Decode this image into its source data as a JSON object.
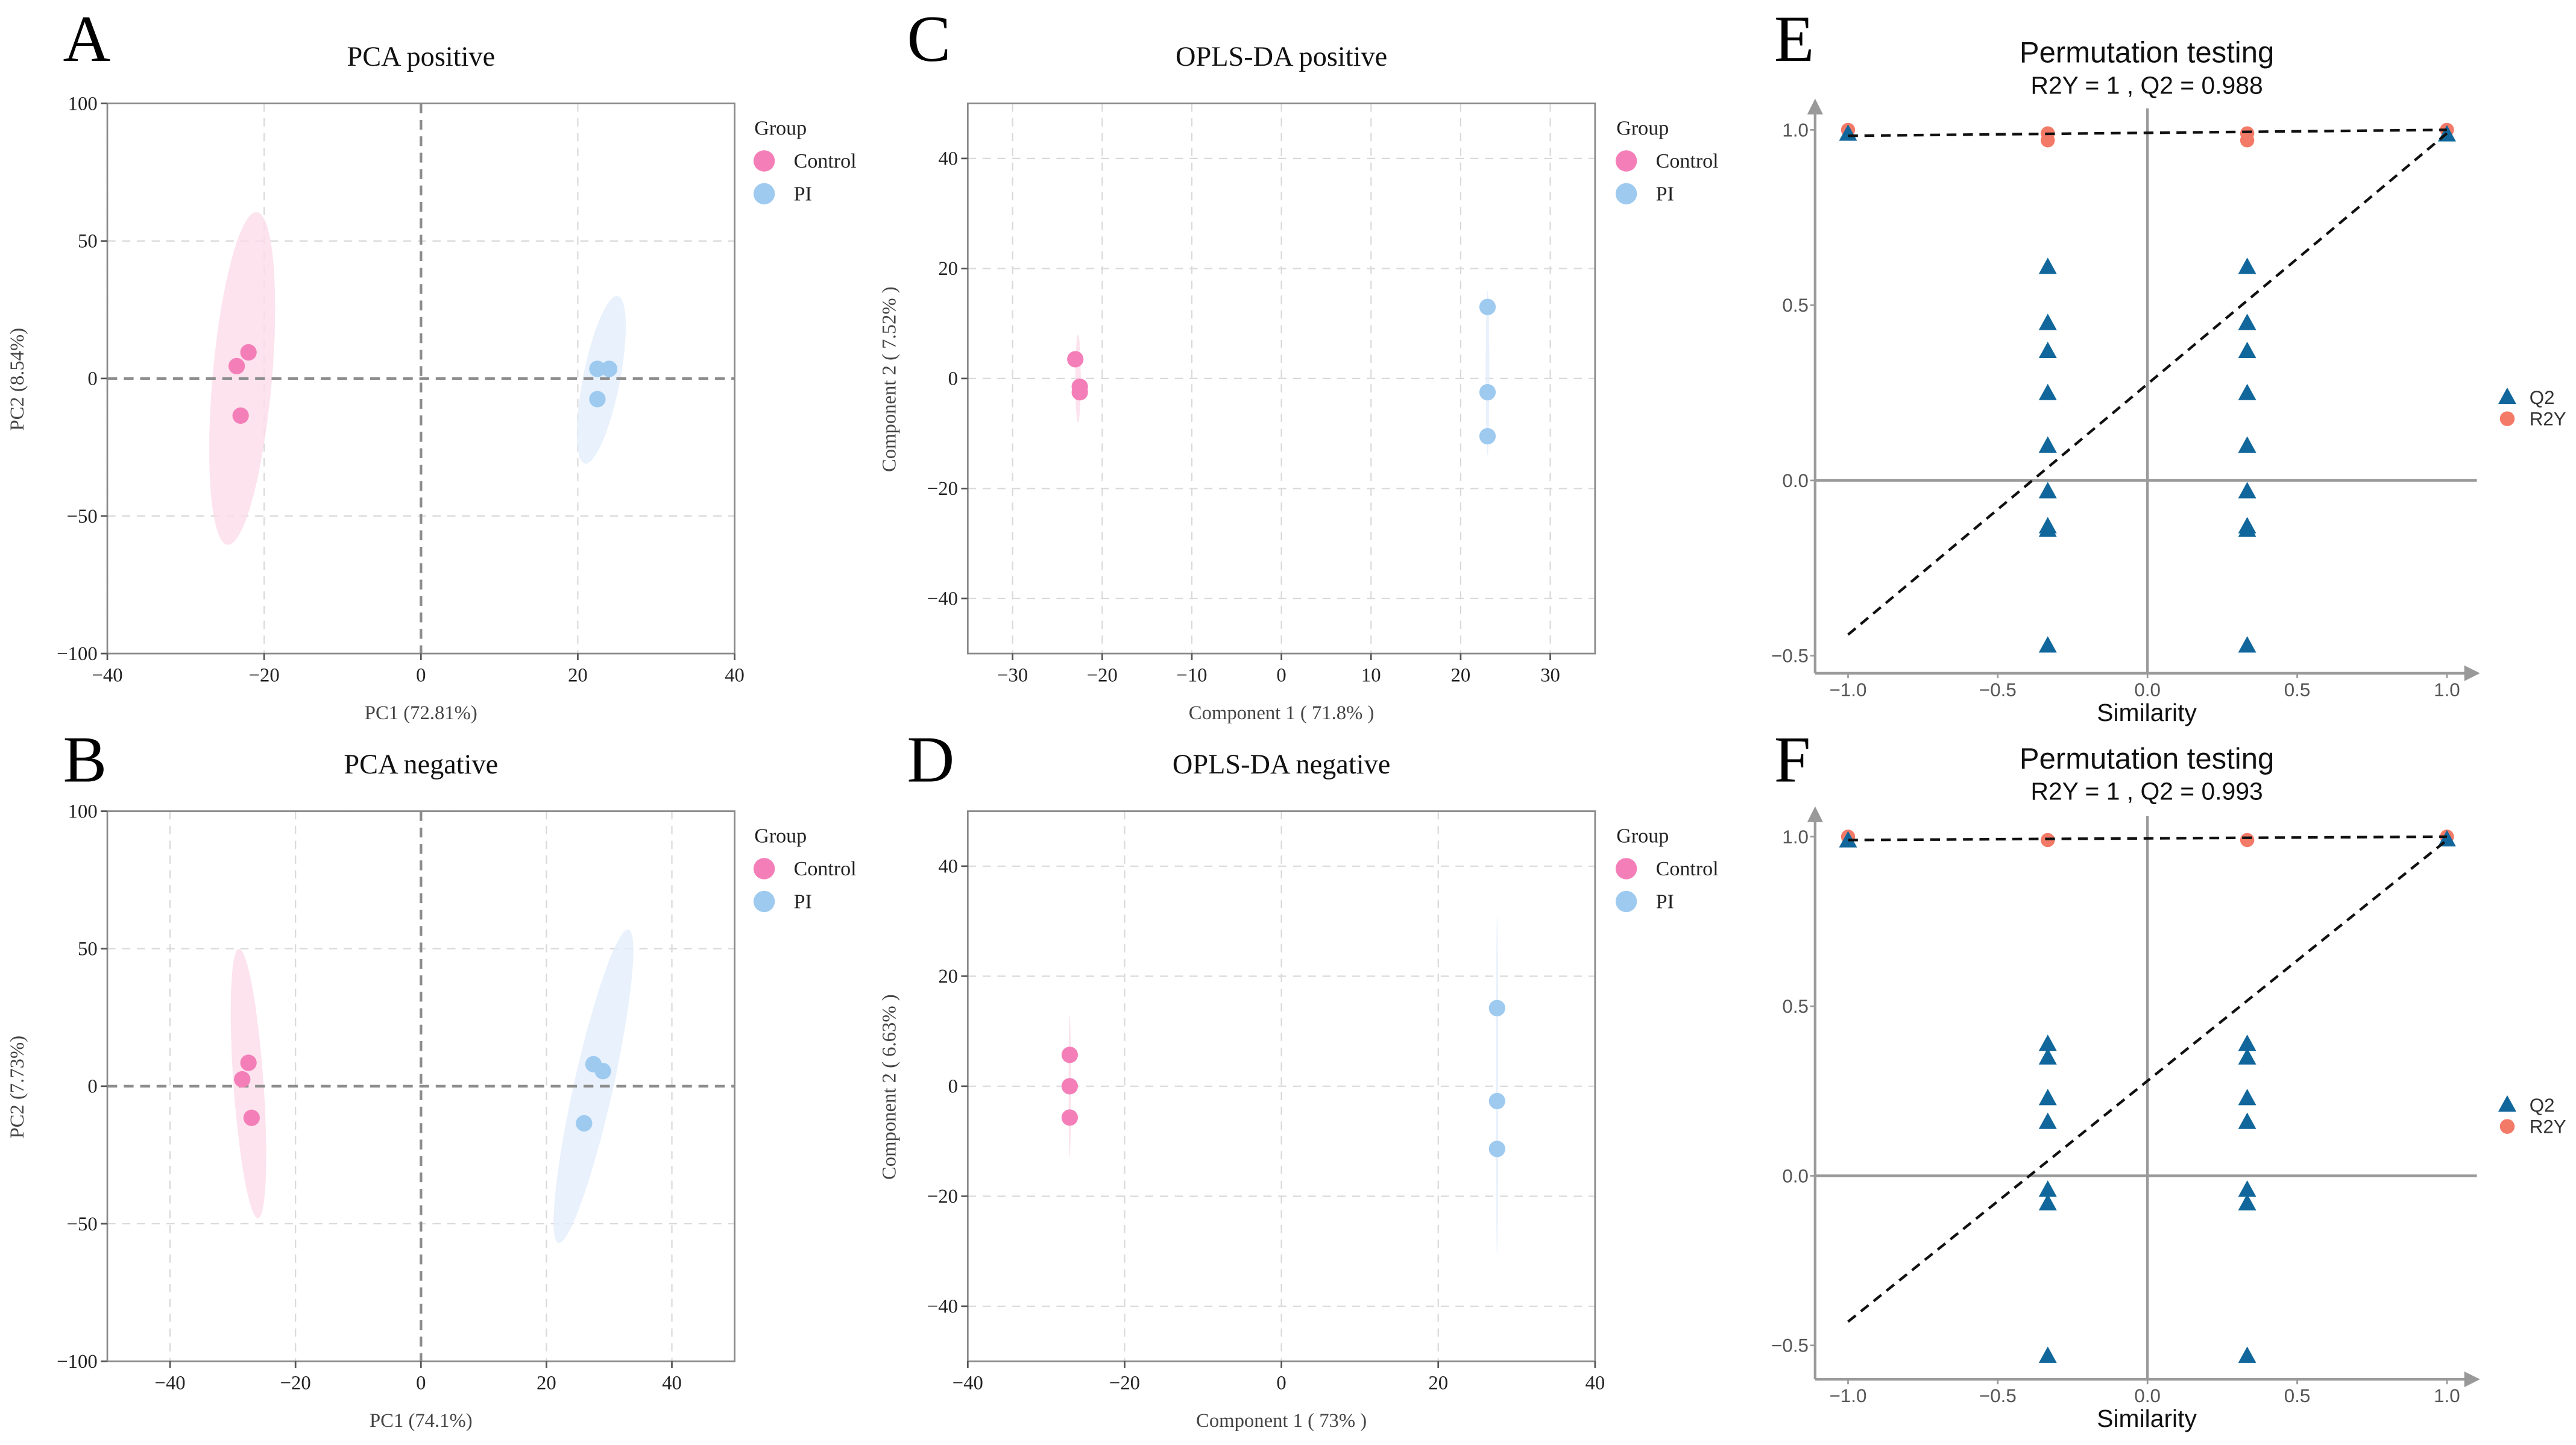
{
  "panels": {
    "A": {
      "letter": "A",
      "title": "PCA positive",
      "xlabel": "PC1 (72.81%)",
      "ylabel": "PC2 (8.54%)"
    },
    "B": {
      "letter": "B",
      "title": "PCA negative",
      "xlabel": "PC1 (74.1%)",
      "ylabel": "PC2 (7.73%)"
    },
    "C": {
      "letter": "C",
      "title": "OPLS-DA positive",
      "xlabel": "Component 1 ( 71.8% )",
      "ylabel": "Component 2 ( 7.52% )"
    },
    "D": {
      "letter": "D",
      "title": "OPLS-DA negative",
      "xlabel": "Component 1 ( 73% )",
      "ylabel": "Component 2 ( 6.63% )"
    },
    "E": {
      "letter": "E",
      "title": "Permutation testing",
      "subtitle": "R2Y = 1 ,  Q2 = 0.988",
      "xlabel": "Similarity"
    },
    "F": {
      "letter": "F",
      "title": "Permutation testing",
      "subtitle": "R2Y = 1 ,  Q2 = 0.993",
      "xlabel": "Similarity"
    }
  },
  "legend": {
    "title": "Group",
    "control": "Control",
    "pi": "PI",
    "q2": "Q2",
    "r2y": "R2Y"
  },
  "colors": {
    "control": "#f47fb8",
    "pi": "#9ecaf0",
    "control_ellipse": "#fbdcea",
    "pi_ellipse": "#e2eefb",
    "q2": "#11679b",
    "r2y": "#f47a68"
  },
  "chart_data": [
    {
      "id": "A",
      "type": "scatter",
      "title": "PCA positive",
      "xlabel": "PC1 (72.81%)",
      "ylabel": "PC2 (8.54%)",
      "xlim": [
        -40,
        40
      ],
      "ylim": [
        -100,
        100
      ],
      "xticks": [
        -40,
        -20,
        0,
        20,
        40
      ],
      "yticks": [
        -100,
        -50,
        0,
        50,
        100
      ],
      "zero_lines": true,
      "legend_position": "right",
      "series": [
        {
          "name": "Control",
          "points": [
            [
              -23.5,
              4.5
            ],
            [
              -22,
              9.5
            ],
            [
              -23,
              -13.5
            ]
          ],
          "ellipse": {
            "center": [
              -22.8,
              0
            ],
            "major": [
              1.8,
              60.5
            ],
            "minor": [
              3.8,
              0
            ]
          }
        },
        {
          "name": "PI",
          "points": [
            [
              22.5,
              3.5
            ],
            [
              24,
              3.5
            ],
            [
              22.5,
              -7.5
            ]
          ],
          "ellipse": {
            "center": [
              23,
              -0.5
            ],
            "major": [
              2,
              30.5
            ],
            "minor": [
              2.4,
              0
            ]
          }
        }
      ]
    },
    {
      "id": "B",
      "type": "scatter",
      "title": "PCA negative",
      "xlabel": "PC1 (74.1%)",
      "ylabel": "PC2 (7.73%)",
      "xlim": [
        -50,
        50
      ],
      "ylim": [
        -100,
        100
      ],
      "xticks": [
        -40,
        -20,
        0,
        20,
        40
      ],
      "yticks": [
        -100,
        -50,
        0,
        50,
        100
      ],
      "zero_lines": true,
      "legend_position": "right",
      "series": [
        {
          "name": "Control",
          "points": [
            [
              -27.5,
              8.5
            ],
            [
              -28.5,
              2.5
            ],
            [
              -27,
              -11.5
            ]
          ],
          "ellipse": {
            "center": [
              -27.5,
              1
            ],
            "major": [
              -1.5,
              49
            ],
            "minor": [
              2.4,
              0
            ]
          }
        },
        {
          "name": "PI",
          "points": [
            [
              27.5,
              8
            ],
            [
              29,
              5.5
            ],
            [
              26,
              -13.5
            ]
          ],
          "ellipse": {
            "center": [
              27.5,
              0
            ],
            "major": [
              5.5,
              57
            ],
            "minor": [
              3.2,
              0
            ]
          }
        }
      ]
    },
    {
      "id": "C",
      "type": "scatter",
      "title": "OPLS-DA positive",
      "xlabel": "Component 1 ( 71.8% )",
      "ylabel": "Component 2 ( 7.52% )",
      "xlim": [
        -35,
        35
      ],
      "ylim": [
        -50,
        50
      ],
      "xticks": [
        -30,
        -20,
        -10,
        0,
        10,
        20,
        30
      ],
      "yticks": [
        -40,
        -20,
        0,
        20,
        40
      ],
      "zero_lines": false,
      "legend_position": "right",
      "series": [
        {
          "name": "Control",
          "points": [
            [
              -23,
              3.5
            ],
            [
              -22.5,
              -1.5
            ],
            [
              -22.5,
              -2.5
            ]
          ],
          "ellipse": {
            "center": [
              -22.7,
              0
            ],
            "major": [
              0,
              8
            ],
            "minor": [
              0.3,
              0
            ]
          }
        },
        {
          "name": "PI",
          "points": [
            [
              23,
              13
            ],
            [
              23,
              -2.5
            ],
            [
              23,
              -10.5
            ]
          ],
          "ellipse": {
            "center": [
              23,
              1
            ],
            "major": [
              0,
              15
            ],
            "minor": [
              0.2,
              0
            ]
          }
        }
      ]
    },
    {
      "id": "D",
      "type": "scatter",
      "title": "OPLS-DA negative",
      "xlabel": "Component 1 ( 73% )",
      "ylabel": "Component 2 ( 6.63% )",
      "xlim": [
        -40,
        40
      ],
      "ylim": [
        -50,
        50
      ],
      "xticks": [
        -40,
        -20,
        0,
        20,
        40
      ],
      "yticks": [
        -40,
        -20,
        0,
        20,
        40
      ],
      "zero_lines": false,
      "legend_position": "right",
      "series": [
        {
          "name": "Control",
          "points": [
            [
              -27,
              5.7
            ],
            [
              -27,
              0
            ],
            [
              -27,
              -5.7
            ]
          ],
          "ellipse": {
            "center": [
              -27,
              0
            ],
            "major": [
              0,
              13
            ],
            "minor": [
              0.15,
              0
            ]
          }
        },
        {
          "name": "PI",
          "points": [
            [
              27.5,
              14.2
            ],
            [
              27.5,
              -2.7
            ],
            [
              27.5,
              -11.4
            ]
          ],
          "ellipse": {
            "center": [
              27.5,
              0
            ],
            "major": [
              0,
              31
            ],
            "minor": [
              0.15,
              0
            ]
          }
        }
      ]
    },
    {
      "id": "E",
      "type": "scatter",
      "title": "Permutation testing",
      "subtitle": "R2Y = 1 ,  Q2 = 0.988",
      "xlabel": "Similarity",
      "ylabel": "",
      "xlim": [
        -1.11,
        1.1
      ],
      "ylim": [
        -0.55,
        1.08
      ],
      "xticks": [
        -1.0,
        -0.5,
        0.0,
        0.5,
        1.0
      ],
      "yticks": [
        -0.5,
        0.0,
        0.5,
        1.0
      ],
      "tick_decimals": 1,
      "legend_position": "right",
      "q2": [
        [
          -1,
          0.99
        ],
        [
          1,
          0.988
        ],
        [
          -0.333,
          0.61
        ],
        [
          -0.333,
          0.45
        ],
        [
          -0.333,
          0.37
        ],
        [
          -0.333,
          0.25
        ],
        [
          -0.333,
          0.1
        ],
        [
          -0.333,
          -0.03
        ],
        [
          -0.333,
          -0.13
        ],
        [
          -0.333,
          -0.14
        ],
        [
          -0.333,
          -0.47
        ],
        [
          0.333,
          0.61
        ],
        [
          0.333,
          0.45
        ],
        [
          0.333,
          0.37
        ],
        [
          0.333,
          0.25
        ],
        [
          0.333,
          0.1
        ],
        [
          0.333,
          -0.03
        ],
        [
          0.333,
          -0.13
        ],
        [
          0.333,
          -0.14
        ],
        [
          0.333,
          -0.47
        ]
      ],
      "r2y": [
        [
          -1,
          1.0
        ],
        [
          -0.333,
          0.97
        ],
        [
          -0.333,
          0.99
        ],
        [
          0.333,
          0.97
        ],
        [
          0.333,
          0.99
        ],
        [
          1,
          1.0
        ]
      ],
      "r2y_line": [
        [
          -1,
          0.983
        ],
        [
          1,
          1.0
        ]
      ],
      "q2_line": [
        [
          -1,
          -0.44
        ],
        [
          1,
          0.99
        ]
      ]
    },
    {
      "id": "F",
      "type": "scatter",
      "title": "Permutation testing",
      "subtitle": "R2Y = 1 ,  Q2 = 0.993",
      "xlabel": "Similarity",
      "ylabel": "",
      "xlim": [
        -1.11,
        1.1
      ],
      "ylim": [
        -0.6,
        1.08
      ],
      "xticks": [
        -1.0,
        -0.5,
        0.0,
        0.5,
        1.0
      ],
      "yticks": [
        -0.5,
        0.0,
        0.5,
        1.0
      ],
      "tick_decimals": 1,
      "legend_position": "right",
      "q2": [
        [
          -1,
          0.99
        ],
        [
          1,
          0.993
        ],
        [
          -0.333,
          0.39
        ],
        [
          -0.333,
          0.35
        ],
        [
          -0.333,
          0.23
        ],
        [
          -0.333,
          0.16
        ],
        [
          -0.333,
          -0.04
        ],
        [
          -0.333,
          -0.08
        ],
        [
          -0.333,
          -0.53
        ],
        [
          0.333,
          0.39
        ],
        [
          0.333,
          0.35
        ],
        [
          0.333,
          0.23
        ],
        [
          0.333,
          0.16
        ],
        [
          0.333,
          -0.04
        ],
        [
          0.333,
          -0.08
        ],
        [
          0.333,
          -0.53
        ]
      ],
      "r2y": [
        [
          -1,
          1.0
        ],
        [
          -0.333,
          0.99
        ],
        [
          0.333,
          0.99
        ],
        [
          1,
          1.0
        ]
      ],
      "r2y_line": [
        [
          -1,
          0.99
        ],
        [
          1,
          1.0
        ]
      ],
      "q2_line": [
        [
          -1,
          -0.43
        ],
        [
          1,
          0.99
        ]
      ]
    }
  ]
}
